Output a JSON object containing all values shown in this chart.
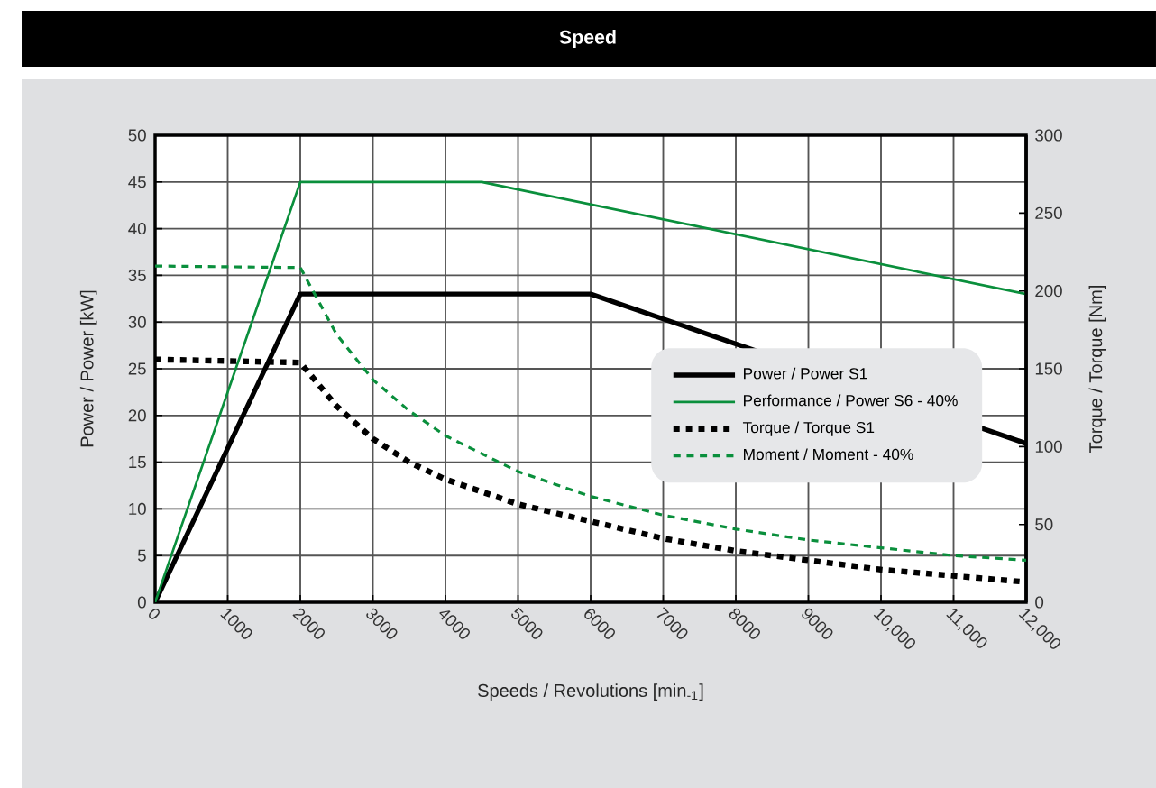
{
  "chart_data": {
    "type": "line",
    "title": "Speed",
    "xlabel": "Speeds / Revolutions [min$_{-1}$]",
    "ylabel": "Power / Power [kW]",
    "y2label": "Torque / Torque [Nm]",
    "xlim": [
      0,
      12000
    ],
    "ylim": [
      0,
      50
    ],
    "y2lim": [
      0,
      300
    ],
    "xticks": [
      0,
      1000,
      2000,
      3000,
      4000,
      5000,
      6000,
      7000,
      8000,
      9000,
      {
        "value": 10000,
        "label": "10,000"
      },
      {
        "value": 11000,
        "label": "11,000"
      },
      {
        "value": 12000,
        "label": "12,000"
      }
    ],
    "yticks": [
      0,
      5,
      10,
      15,
      20,
      25,
      30,
      35,
      40,
      45,
      50
    ],
    "y2ticks": [
      0,
      50,
      100,
      150,
      200,
      250,
      300
    ],
    "grid": true,
    "legend": "right",
    "series": [
      {
        "name": "Power / Power S1",
        "color": "#000000",
        "line_style": "solid",
        "x": [
          0,
          2000,
          6000,
          12000
        ],
        "values": [
          0,
          33,
          33,
          17
        ]
      },
      {
        "name": "Performance / Power S6 - 40%",
        "color": "#0a8f3c",
        "line_style": "solid",
        "x": [
          0,
          2000,
          4500,
          12000
        ],
        "values": [
          0,
          45,
          45,
          33
        ]
      },
      {
        "name": "Torque / Torque S1",
        "color": "#000000",
        "line_style": "dotted",
        "axis": "y2",
        "x": [
          0,
          2000,
          2500,
          3000,
          3500,
          4000,
          5000,
          6000,
          7000,
          8000,
          9000,
          10000,
          11000,
          12000
        ],
        "values": [
          156,
          154,
          126,
          105,
          90,
          79,
          63,
          52,
          41,
          33,
          27,
          21,
          17,
          13
        ]
      },
      {
        "name": "Moment / Moment - 40%",
        "color": "#0a8f3c",
        "line_style": "dashed",
        "axis": "y2",
        "x": [
          0,
          2000,
          2500,
          3000,
          3500,
          4000,
          5000,
          6000,
          7000,
          8000,
          9000,
          10000,
          11000,
          12000
        ],
        "values": [
          216,
          215,
          172,
          143,
          123,
          107,
          84,
          68,
          56,
          47,
          40,
          35,
          30,
          27
        ]
      }
    ]
  }
}
